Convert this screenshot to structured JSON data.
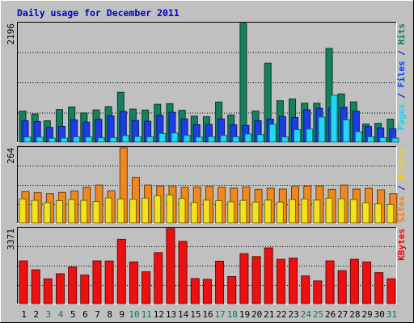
{
  "chart_data": {
    "type": "bar",
    "title": "Daily usage for December 2011",
    "x": [
      "1",
      "2",
      "3",
      "4",
      "5",
      "6",
      "7",
      "8",
      "9",
      "10",
      "11",
      "12",
      "13",
      "14",
      "15",
      "16",
      "17",
      "18",
      "19",
      "20",
      "21",
      "22",
      "23",
      "24",
      "25",
      "26",
      "27",
      "28",
      "29",
      "30",
      "31"
    ],
    "weekend_days": [
      "3",
      "4",
      "10",
      "11",
      "17",
      "18",
      "24",
      "25",
      "31"
    ],
    "panels": [
      {
        "id": "hits-files-pages",
        "max_label": "2196",
        "ymax": 2196,
        "label_parts": [
          {
            "text": "Pages",
            "color": "#00E0FF"
          },
          {
            "text": " / ",
            "color": "#0000C0"
          },
          {
            "text": "Files",
            "color": "#0040FF"
          },
          {
            "text": " / ",
            "color": "#0000C0"
          },
          {
            "text": "Hits",
            "color": "#008060"
          }
        ],
        "series": [
          {
            "name": "Hits",
            "color": "#148060",
            "values": [
              574,
              520,
              395,
              603,
              650,
              540,
              595,
              657,
              922,
              611,
              593,
              700,
              712,
              589,
              481,
              471,
              742,
              502,
              2196,
              576,
              1461,
              766,
              798,
              721,
              720,
              1734,
              892,
              744,
              334,
              347,
              425
            ]
          },
          {
            "name": "Files",
            "color": "#1C3DE8",
            "values": [
              397,
              380,
              272,
              291,
              412,
              369,
              422,
              486,
              570,
              401,
              387,
              498,
              551,
              431,
              322,
              327,
              429,
              319,
              310,
              396,
              426,
              474,
              455,
              598,
              626,
              630,
              645,
              573,
              289,
              263,
              245
            ]
          },
          {
            "name": "Pages",
            "color": "#1FD8F5",
            "values": [
              95,
              92,
              72,
              76,
              98,
              94,
              81,
              83,
              122,
              104,
              98,
              158,
              169,
              126,
              93,
              102,
              123,
              97,
              151,
              138,
              328,
              95,
              231,
              242,
              464,
              867,
              412,
              192,
              99,
              83,
              75
            ]
          }
        ]
      },
      {
        "id": "visits-sites",
        "max_label": "264",
        "ymax": 264,
        "label_parts": [
          {
            "text": "Sites",
            "color": "#FF8000"
          },
          {
            "text": " / ",
            "color": "#0000C0"
          },
          {
            "text": "Visits",
            "color": "#FFD000"
          }
        ],
        "series": [
          {
            "name": "Visits",
            "color": "#F08820",
            "values": [
              110,
              106,
              103,
              107,
              112,
              125,
              133,
              113,
              264,
              160,
              133,
              129,
              128,
              125,
              126,
              128,
              125,
              122,
              126,
              118,
              122,
              119,
              128,
              129,
              130,
              118,
              133,
              119,
              122,
              116,
              103
            ]
          },
          {
            "name": "Sites",
            "color": "#F5E21C",
            "values": [
              84,
              79,
              71,
              78,
              82,
              79,
              75,
              88,
              84,
              83,
              87,
              95,
              98,
              86,
              72,
              80,
              78,
              74,
              79,
              73,
              80,
              73,
              82,
              84,
              80,
              87,
              85,
              82,
              71,
              67,
              64
            ]
          }
        ]
      },
      {
        "id": "kbytes",
        "max_label": "3371",
        "ymax": 3371,
        "label_parts": [
          {
            "text": "KBytes",
            "color": "#FF0000"
          }
        ],
        "series": [
          {
            "name": "KBytes",
            "color": "#EE1010",
            "values": [
              1918,
              1519,
              1112,
              1341,
              1641,
              1280,
              1918,
              1912,
              2885,
              1871,
              1429,
              2288,
              3371,
              2792,
              1126,
              1090,
              1904,
              1214,
              2242,
              2108,
              2500,
              1990,
              2042,
              1243,
              1019,
              1918,
              1480,
              1990,
              1870,
              1390,
              1117
            ]
          }
        ]
      }
    ]
  }
}
